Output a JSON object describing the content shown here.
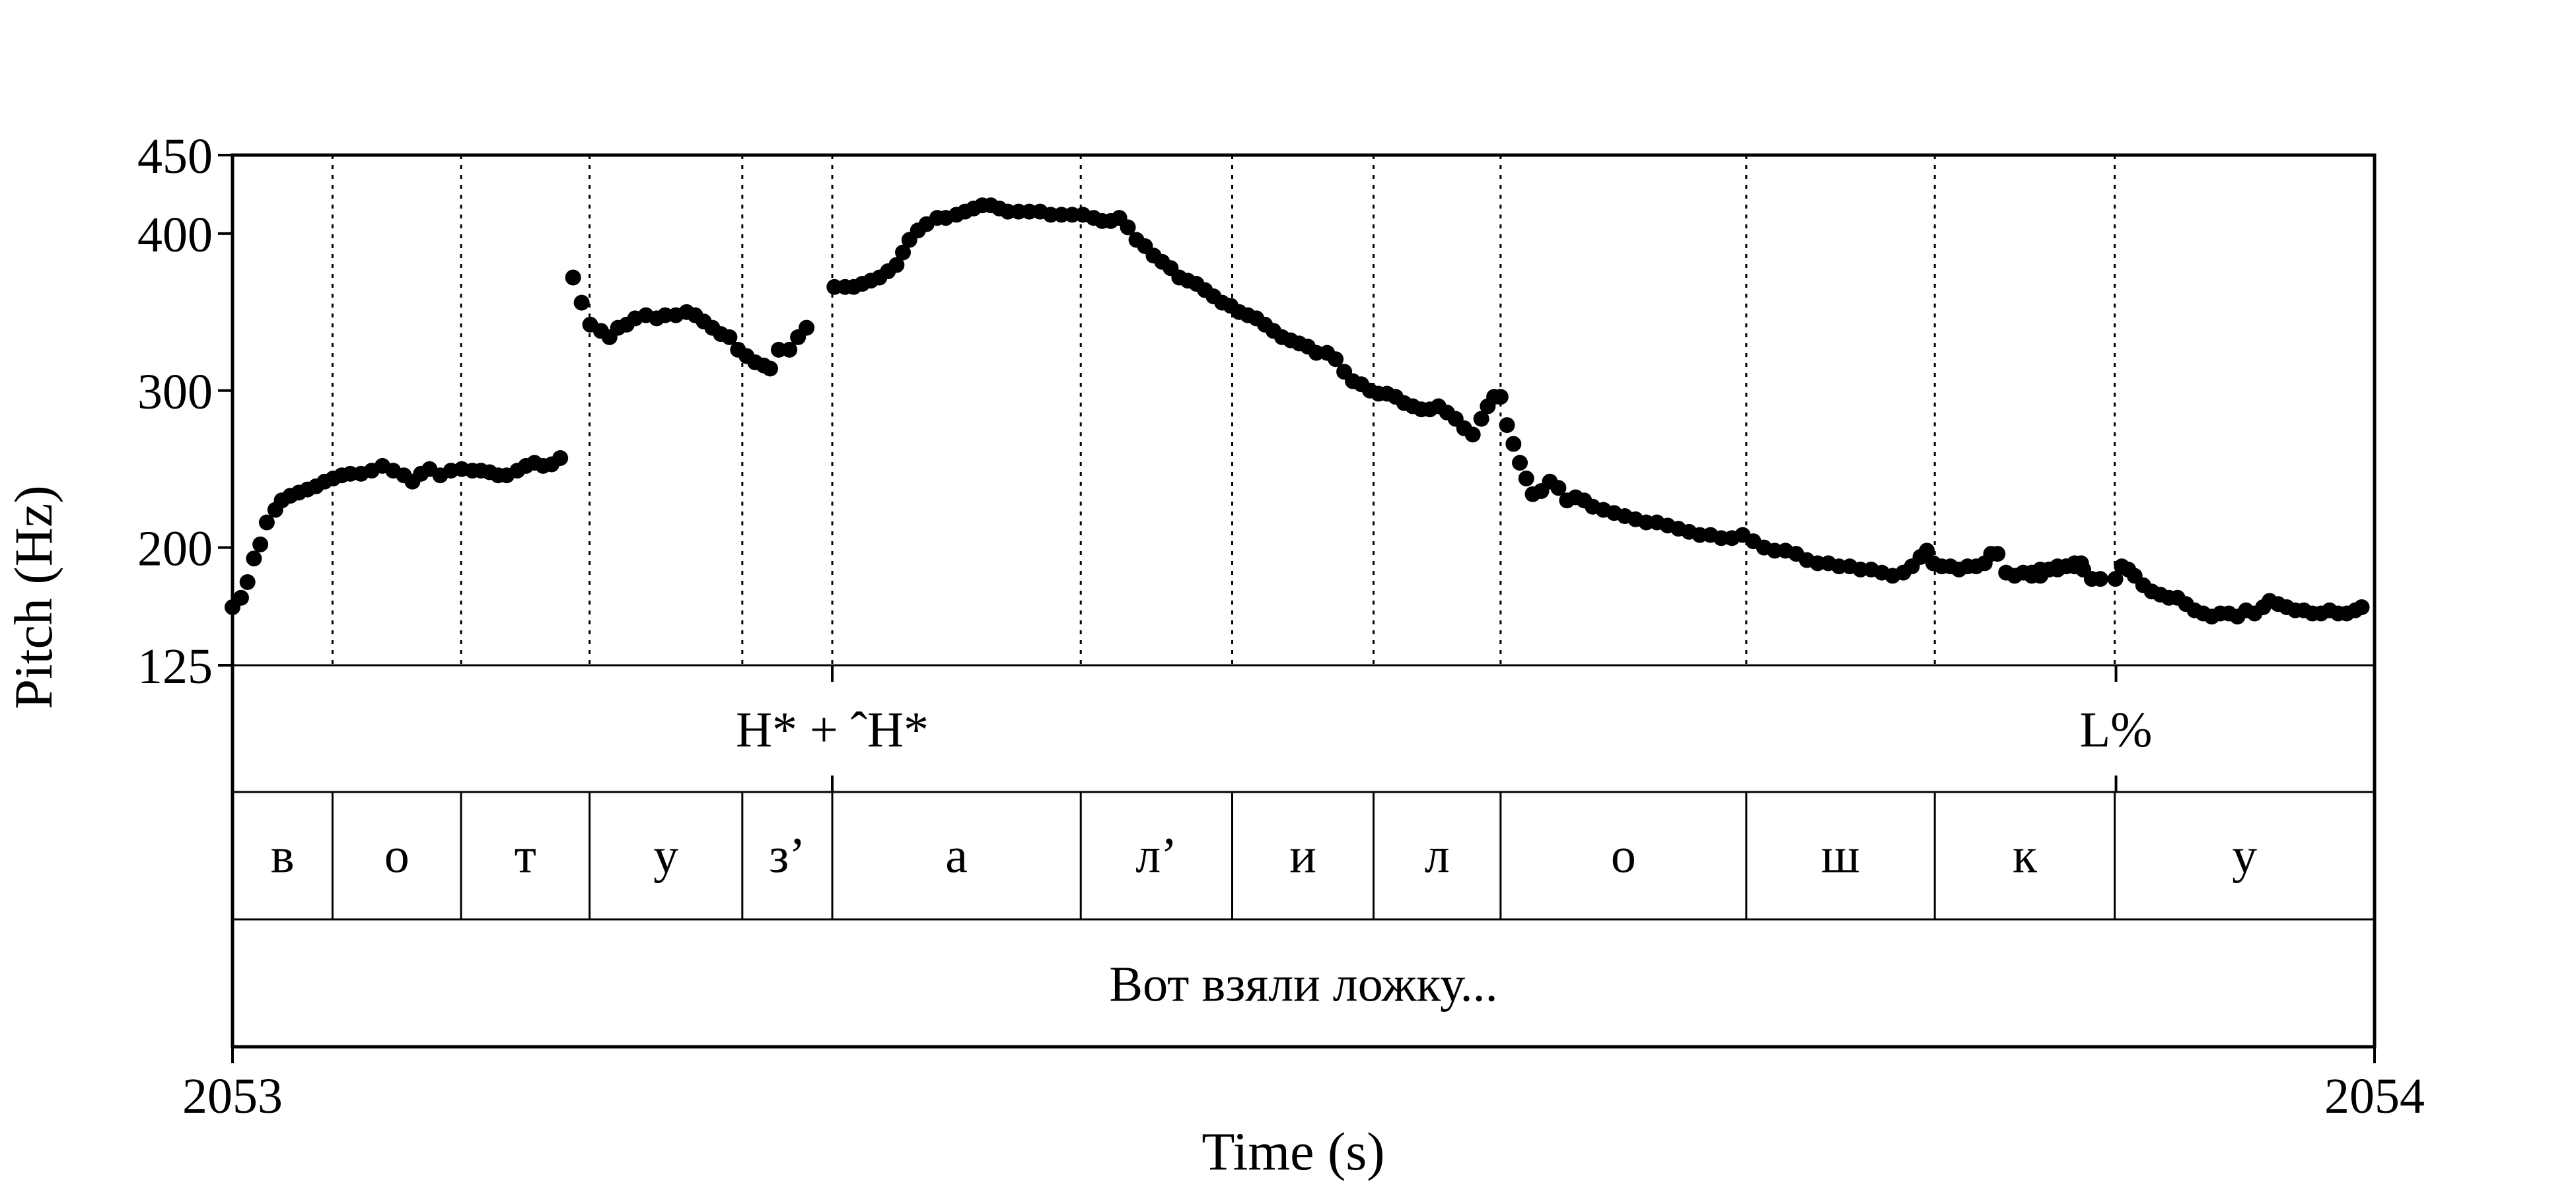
{
  "chart_data": {
    "type": "scatter",
    "title": "",
    "xlabel": "Time (s)",
    "ylabel": "Pitch (Hz)",
    "xlim": [
      2053,
      2054
    ],
    "ylim": [
      125,
      450
    ],
    "x_ticks": [
      "2053",
      "2054"
    ],
    "y_ticks": [
      450,
      400,
      300,
      200,
      125
    ],
    "grid": false,
    "tones": [
      {
        "label": "H* + ˆH*",
        "time": 2053.28
      },
      {
        "label": "L%",
        "time": 2053.8793
      }
    ],
    "segment_boundaries": [
      2053.0,
      2053.0467,
      2053.1067,
      2053.1667,
      2053.238,
      2053.28,
      2053.396,
      2053.4667,
      2053.5327,
      2053.592,
      2053.7067,
      2053.7947,
      2053.8787,
      2054.0
    ],
    "segments": [
      "в",
      "о",
      "т",
      "у",
      "з’",
      "а",
      "л’",
      "и",
      "л",
      "о",
      "ш",
      "к",
      "у"
    ],
    "phrase": "Вот взяли ложку...",
    "pitch_points": [
      [
        2053.0,
        162
      ],
      [
        2053.004,
        168
      ],
      [
        2053.007,
        178
      ],
      [
        2053.01,
        193
      ],
      [
        2053.013,
        202
      ],
      [
        2053.016,
        216
      ],
      [
        2053.02,
        224
      ],
      [
        2053.023,
        230
      ],
      [
        2053.027,
        233
      ],
      [
        2053.031,
        235
      ],
      [
        2053.035,
        237
      ],
      [
        2053.039,
        239
      ],
      [
        2053.043,
        242
      ],
      [
        2053.047,
        244
      ],
      [
        2053.051,
        246
      ],
      [
        2053.055,
        247
      ],
      [
        2053.06,
        247
      ],
      [
        2053.065,
        249
      ],
      [
        2053.07,
        252
      ],
      [
        2053.075,
        249
      ],
      [
        2053.08,
        246
      ],
      [
        2053.084,
        242
      ],
      [
        2053.088,
        247
      ],
      [
        2053.092,
        250
      ],
      [
        2053.097,
        246
      ],
      [
        2053.102,
        249
      ],
      [
        2053.107,
        250
      ],
      [
        2053.112,
        249
      ],
      [
        2053.116,
        249
      ],
      [
        2053.12,
        248
      ],
      [
        2053.124,
        246
      ],
      [
        2053.128,
        246
      ],
      [
        2053.133,
        249
      ],
      [
        2053.137,
        252
      ],
      [
        2053.141,
        254
      ],
      [
        2053.145,
        252
      ],
      [
        2053.149,
        253
      ],
      [
        2053.153,
        257
      ],
      [
        2053.159,
        372
      ],
      [
        2053.163,
        356
      ],
      [
        2053.167,
        342
      ],
      [
        2053.172,
        338
      ],
      [
        2053.176,
        334
      ],
      [
        2053.18,
        340
      ],
      [
        2053.184,
        342
      ],
      [
        2053.188,
        346
      ],
      [
        2053.193,
        348
      ],
      [
        2053.198,
        346
      ],
      [
        2053.202,
        348
      ],
      [
        2053.207,
        348
      ],
      [
        2053.212,
        350
      ],
      [
        2053.216,
        348
      ],
      [
        2053.22,
        344
      ],
      [
        2053.224,
        340
      ],
      [
        2053.228,
        336
      ],
      [
        2053.232,
        334
      ],
      [
        2053.236,
        326
      ],
      [
        2053.24,
        322
      ],
      [
        2053.244,
        318
      ],
      [
        2053.248,
        316
      ],
      [
        2053.251,
        314
      ],
      [
        2053.255,
        326
      ],
      [
        2053.26,
        326
      ],
      [
        2053.264,
        334
      ],
      [
        2053.268,
        340
      ],
      [
        2053.281,
        366
      ],
      [
        2053.286,
        366
      ],
      [
        2053.29,
        366
      ],
      [
        2053.294,
        368
      ],
      [
        2053.298,
        370
      ],
      [
        2053.302,
        372
      ],
      [
        2053.306,
        376
      ],
      [
        2053.31,
        380
      ],
      [
        2053.313,
        388
      ],
      [
        2053.316,
        396
      ],
      [
        2053.32,
        402
      ],
      [
        2053.324,
        406
      ],
      [
        2053.329,
        410
      ],
      [
        2053.333,
        410
      ],
      [
        2053.338,
        412
      ],
      [
        2053.342,
        414
      ],
      [
        2053.346,
        416
      ],
      [
        2053.35,
        418
      ],
      [
        2053.354,
        418
      ],
      [
        2053.358,
        416
      ],
      [
        2053.362,
        414
      ],
      [
        2053.367,
        414
      ],
      [
        2053.372,
        414
      ],
      [
        2053.377,
        414
      ],
      [
        2053.382,
        412
      ],
      [
        2053.387,
        412
      ],
      [
        2053.392,
        412
      ],
      [
        2053.397,
        412
      ],
      [
        2053.402,
        410
      ],
      [
        2053.406,
        408
      ],
      [
        2053.41,
        408
      ],
      [
        2053.414,
        410
      ],
      [
        2053.418,
        404
      ],
      [
        2053.422,
        396
      ],
      [
        2053.426,
        392
      ],
      [
        2053.43,
        386
      ],
      [
        2053.434,
        382
      ],
      [
        2053.438,
        378
      ],
      [
        2053.442,
        372
      ],
      [
        2053.446,
        370
      ],
      [
        2053.45,
        368
      ],
      [
        2053.454,
        364
      ],
      [
        2053.458,
        360
      ],
      [
        2053.462,
        356
      ],
      [
        2053.466,
        354
      ],
      [
        2053.47,
        350
      ],
      [
        2053.474,
        348
      ],
      [
        2053.478,
        346
      ],
      [
        2053.482,
        342
      ],
      [
        2053.486,
        338
      ],
      [
        2053.49,
        334
      ],
      [
        2053.494,
        332
      ],
      [
        2053.498,
        330
      ],
      [
        2053.502,
        328
      ],
      [
        2053.506,
        324
      ],
      [
        2053.511,
        324
      ],
      [
        2053.515,
        320
      ],
      [
        2053.519,
        312
      ],
      [
        2053.523,
        306
      ],
      [
        2053.527,
        304
      ],
      [
        2053.531,
        300
      ],
      [
        2053.535,
        298
      ],
      [
        2053.539,
        298
      ],
      [
        2053.543,
        296
      ],
      [
        2053.547,
        292
      ],
      [
        2053.551,
        290
      ],
      [
        2053.555,
        288
      ],
      [
        2053.559,
        288
      ],
      [
        2053.563,
        290
      ],
      [
        2053.567,
        286
      ],
      [
        2053.571,
        282
      ],
      [
        2053.575,
        276
      ],
      [
        2053.579,
        272
      ],
      [
        2053.583,
        282
      ],
      [
        2053.586,
        290
      ],
      [
        2053.589,
        296
      ],
      [
        2053.592,
        296
      ],
      [
        2053.595,
        278
      ],
      [
        2053.598,
        266
      ],
      [
        2053.601,
        254
      ],
      [
        2053.604,
        244
      ],
      [
        2053.607,
        234
      ],
      [
        2053.611,
        236
      ],
      [
        2053.615,
        242
      ],
      [
        2053.619,
        238
      ],
      [
        2053.623,
        230
      ],
      [
        2053.627,
        232
      ],
      [
        2053.631,
        230
      ],
      [
        2053.635,
        226
      ],
      [
        2053.64,
        224
      ],
      [
        2053.645,
        222
      ],
      [
        2053.65,
        220
      ],
      [
        2053.655,
        218
      ],
      [
        2053.66,
        216
      ],
      [
        2053.665,
        216
      ],
      [
        2053.67,
        214
      ],
      [
        2053.675,
        212
      ],
      [
        2053.68,
        210
      ],
      [
        2053.685,
        208
      ],
      [
        2053.69,
        208
      ],
      [
        2053.695,
        206
      ],
      [
        2053.7,
        206
      ],
      [
        2053.705,
        208
      ],
      [
        2053.71,
        204
      ],
      [
        2053.715,
        200
      ],
      [
        2053.72,
        198
      ],
      [
        2053.725,
        198
      ],
      [
        2053.73,
        196
      ],
      [
        2053.735,
        192
      ],
      [
        2053.74,
        190
      ],
      [
        2053.745,
        190
      ],
      [
        2053.75,
        188
      ],
      [
        2053.755,
        188
      ],
      [
        2053.76,
        186
      ],
      [
        2053.765,
        186
      ],
      [
        2053.77,
        184
      ],
      [
        2053.775,
        182
      ],
      [
        2053.78,
        184
      ],
      [
        2053.784,
        188
      ],
      [
        2053.788,
        194
      ],
      [
        2053.791,
        198
      ],
      [
        2053.794,
        190
      ],
      [
        2053.798,
        188
      ],
      [
        2053.802,
        188
      ],
      [
        2053.806,
        186
      ],
      [
        2053.81,
        188
      ],
      [
        2053.814,
        188
      ],
      [
        2053.818,
        190
      ],
      [
        2053.821,
        196
      ],
      [
        2053.824,
        196
      ],
      [
        2053.828,
        184
      ],
      [
        2053.832,
        182
      ],
      [
        2053.836,
        184
      ],
      [
        2053.84,
        184
      ],
      [
        2053.844,
        186
      ],
      [
        2053.848,
        186
      ],
      [
        2053.852,
        188
      ],
      [
        2053.856,
        188
      ],
      [
        2053.86,
        190
      ],
      [
        2053.863,
        190
      ],
      [
        2053.84,
        182
      ],
      [
        2053.844,
        182
      ],
      [
        2053.848,
        186
      ],
      [
        2053.852,
        186
      ],
      [
        2053.856,
        188
      ],
      [
        2053.86,
        188
      ],
      [
        2053.864,
        186
      ],
      [
        2053.868,
        180
      ],
      [
        2053.872,
        180
      ],
      [
        2053.879,
        180
      ],
      [
        2053.882,
        188
      ],
      [
        2053.885,
        186
      ],
      [
        2053.888,
        182
      ],
      [
        2053.892,
        176
      ],
      [
        2053.896,
        172
      ],
      [
        2053.9,
        170
      ],
      [
        2053.904,
        168
      ],
      [
        2053.908,
        168
      ],
      [
        2053.912,
        164
      ],
      [
        2053.916,
        160
      ],
      [
        2053.92,
        158
      ],
      [
        2053.924,
        156
      ],
      [
        2053.928,
        158
      ],
      [
        2053.932,
        158
      ],
      [
        2053.936,
        156
      ],
      [
        2053.94,
        160
      ],
      [
        2053.944,
        158
      ],
      [
        2053.948,
        162
      ],
      [
        2053.951,
        166
      ],
      [
        2053.955,
        164
      ],
      [
        2053.959,
        162
      ],
      [
        2053.963,
        160
      ],
      [
        2053.967,
        160
      ],
      [
        2053.971,
        158
      ],
      [
        2053.975,
        158
      ],
      [
        2053.979,
        160
      ],
      [
        2053.983,
        158
      ],
      [
        2053.987,
        158
      ],
      [
        2053.991,
        160
      ],
      [
        2053.994,
        162
      ]
    ]
  }
}
